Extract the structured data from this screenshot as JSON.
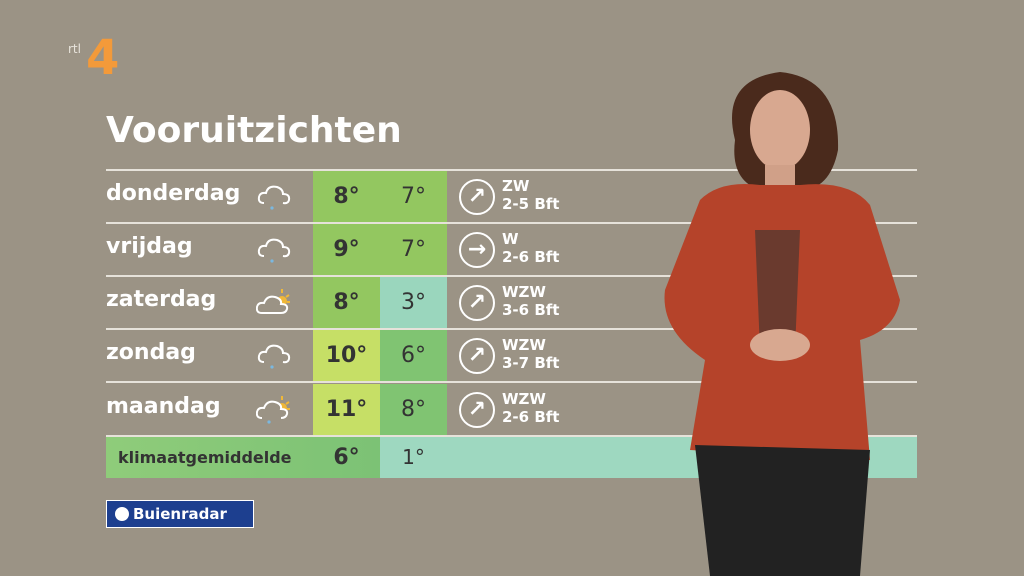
{
  "channel_logo": "rtl 4",
  "title": "Vooruitzichten",
  "rows": [
    {
      "day": "donderdag",
      "icon": "cloud-rain-icon",
      "max": "8°",
      "min": "7°",
      "max_color": "#93c760",
      "min_color": "#93c760",
      "wind_dir": "ZW",
      "wind_arrow": "↗",
      "wind_force": "2-5 Bft"
    },
    {
      "day": "vrijdag",
      "icon": "cloud-rain-icon",
      "max": "9°",
      "min": "7°",
      "max_color": "#93c760",
      "min_color": "#93c760",
      "wind_dir": "W",
      "wind_arrow": "→",
      "wind_force": "2-6 Bft"
    },
    {
      "day": "zaterdag",
      "icon": "sun-cloud-icon",
      "max": "8°",
      "min": "3°",
      "max_color": "#93c760",
      "min_color": "#9ad6bd",
      "wind_dir": "WZW",
      "wind_arrow": "↗",
      "wind_force": "3-6 Bft"
    },
    {
      "day": "zondag",
      "icon": "cloud-rain-icon",
      "max": "10°",
      "min": "6°",
      "max_color": "#c6df66",
      "min_color": "#80c472",
      "wind_dir": "WZW",
      "wind_arrow": "↗",
      "wind_force": "3-7 Bft"
    },
    {
      "day": "maandag",
      "icon": "sun-cloud-rain-icon",
      "max": "11°",
      "min": "8°",
      "max_color": "#c6df66",
      "min_color": "#80c472",
      "wind_dir": "WZW",
      "wind_arrow": "↗",
      "wind_force": "2-6 Bft"
    }
  ],
  "climate": {
    "label": "klimaatgemiddelde",
    "max": "6°",
    "min": "1°"
  },
  "brand": "Buienradar"
}
